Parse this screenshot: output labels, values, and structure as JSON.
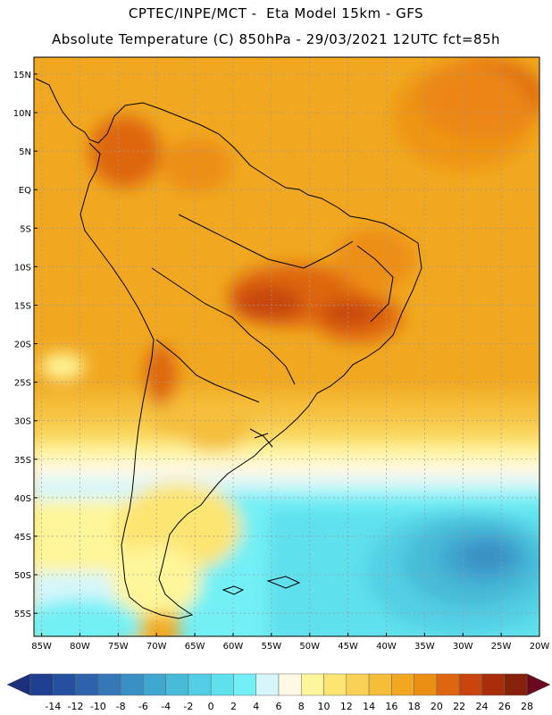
{
  "header": {
    "line1": "CPTEC/INPE/MCT -  Eta Model 15km - GFS",
    "line2": "Absolute Temperature (C) 850hPa - 29/03/2021 12UTC fct=85h"
  },
  "map": {
    "lat_ticks": [
      "15N",
      "10N",
      "5N",
      "EQ",
      "5S",
      "10S",
      "15S",
      "20S",
      "25S",
      "30S",
      "35S",
      "40S",
      "45S",
      "50S",
      "55S"
    ],
    "lon_ticks": [
      "85W",
      "80W",
      "75W",
      "70W",
      "65W",
      "60W",
      "55W",
      "50W",
      "45W",
      "40W",
      "35W",
      "30W",
      "25W",
      "20W"
    ]
  },
  "colorbar": {
    "labels": [
      "-14",
      "-12",
      "-10",
      "-8",
      "-6",
      "-4",
      "-2",
      "0",
      "2",
      "4",
      "6",
      "8",
      "10",
      "12",
      "14",
      "16",
      "18",
      "20",
      "22",
      "24",
      "26",
      "28"
    ],
    "colors": [
      "#1f3f91",
      "#25509f",
      "#2e62ad",
      "#3478b8",
      "#3a8fc4",
      "#3fa6cf",
      "#46bcd9",
      "#52cfe4",
      "#5fe0ed",
      "#72f0f5",
      "#d6f6fb",
      "#fff8e4",
      "#fff59a",
      "#fde572",
      "#f9d255",
      "#f5be3a",
      "#f1a820",
      "#ed8e14",
      "#de6610",
      "#c8460e",
      "#a82d0b",
      "#86200a"
    ],
    "under_color": "#1c2f7a",
    "over_color": "#6b0a1f"
  }
}
